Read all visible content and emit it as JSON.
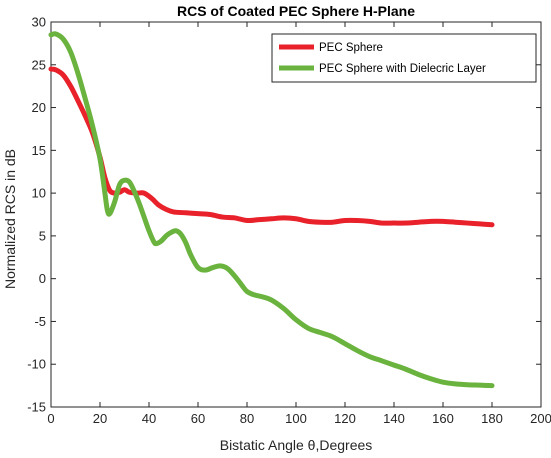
{
  "chart_data": {
    "type": "line",
    "title": "RCS of Coated PEC Sphere H-Plane",
    "xlabel": "Bistatic Angle θ,Degrees",
    "ylabel": "Normalized RCS in dB",
    "xlim": [
      0,
      200
    ],
    "ylim": [
      -15,
      30
    ],
    "xticks": [
      0,
      20,
      40,
      60,
      80,
      100,
      120,
      140,
      160,
      180,
      200
    ],
    "yticks": [
      -15,
      -10,
      -5,
      0,
      5,
      10,
      15,
      20,
      25,
      30
    ],
    "grid": false,
    "legend_position": "top-right",
    "series": [
      {
        "name": "PEC Sphere",
        "color": "#e8212a",
        "x": [
          0,
          2,
          5,
          8,
          11,
          14,
          17,
          20,
          22,
          24,
          26,
          28,
          30,
          32,
          35,
          38,
          41,
          44,
          47,
          50,
          55,
          60,
          65,
          70,
          75,
          80,
          85,
          90,
          95,
          100,
          105,
          110,
          115,
          120,
          125,
          130,
          135,
          140,
          145,
          150,
          155,
          160,
          165,
          170,
          175,
          180
        ],
        "y": [
          24.5,
          24.4,
          23.8,
          22.5,
          20.8,
          19.0,
          17.0,
          14.2,
          11.8,
          10.3,
          10.0,
          10.1,
          10.4,
          10.1,
          10.0,
          10.0,
          9.4,
          8.6,
          8.1,
          7.8,
          7.7,
          7.6,
          7.5,
          7.2,
          7.1,
          6.8,
          6.9,
          7.0,
          7.1,
          7.0,
          6.7,
          6.6,
          6.6,
          6.8,
          6.8,
          6.7,
          6.5,
          6.5,
          6.5,
          6.6,
          6.7,
          6.7,
          6.6,
          6.5,
          6.4,
          6.3
        ]
      },
      {
        "name": "PEC Sphere with Dielecric Layer",
        "color": "#6ab33e",
        "x": [
          0,
          2,
          5,
          8,
          11,
          14,
          17,
          20,
          22,
          23,
          24,
          26,
          28,
          30,
          32,
          34,
          36,
          38,
          40,
          42,
          43,
          45,
          47,
          49,
          51,
          53,
          55,
          57,
          60,
          63,
          66,
          69,
          72,
          75,
          78,
          80,
          83,
          86,
          90,
          95,
          100,
          105,
          110,
          115,
          120,
          125,
          130,
          135,
          140,
          145,
          150,
          155,
          160,
          165,
          170,
          175,
          180
        ],
        "y": [
          28.5,
          28.6,
          28.0,
          26.5,
          24.0,
          21.0,
          17.8,
          14.0,
          10.0,
          8.0,
          7.6,
          9.0,
          11.0,
          11.5,
          11.3,
          10.2,
          8.8,
          7.2,
          5.6,
          4.3,
          4.1,
          4.4,
          5.0,
          5.4,
          5.6,
          5.2,
          4.2,
          2.8,
          1.3,
          1.0,
          1.3,
          1.5,
          1.2,
          0.3,
          -0.8,
          -1.5,
          -1.9,
          -2.1,
          -2.5,
          -3.5,
          -4.8,
          -5.8,
          -6.3,
          -6.8,
          -7.6,
          -8.4,
          -9.1,
          -9.6,
          -10.1,
          -10.6,
          -11.2,
          -11.7,
          -12.1,
          -12.3,
          -12.4,
          -12.45,
          -12.5
        ]
      }
    ]
  }
}
